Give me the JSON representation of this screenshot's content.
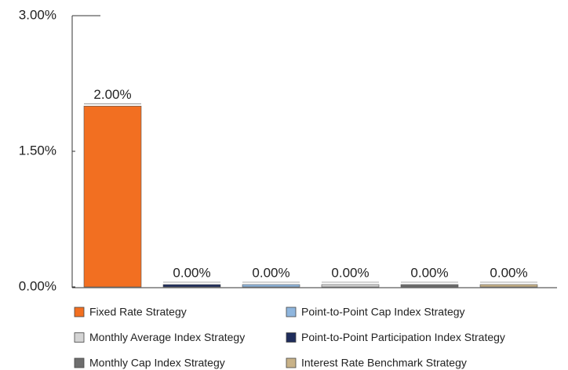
{
  "chart_data": {
    "type": "bar",
    "categories": [
      "Fixed Rate Strategy",
      "Point-to-Point Participation Index Strategy",
      "Point-to-Point Cap Index Strategy",
      "Monthly Average Index Strategy",
      "Monthly Cap Index Strategy",
      "Interest Rate Benchmark Strategy"
    ],
    "values": [
      2,
      0,
      0,
      0,
      0,
      0
    ],
    "value_labels": [
      "2.00%",
      "0.00%",
      "0.00%",
      "0.00%",
      "0.00%",
      "0.00%"
    ],
    "colors": [
      "#f26f21",
      "#1f2d5c",
      "#8fb6de",
      "#d4d4d4",
      "#6e6e6e",
      "#c8b288"
    ],
    "ylim": [
      0,
      3
    ],
    "yticks": [
      {
        "value": 0,
        "label": "0.00%"
      },
      {
        "value": 1.5,
        "label": "1.50%"
      },
      {
        "value": 3,
        "label": "3.00%"
      }
    ],
    "grid": false
  }
}
